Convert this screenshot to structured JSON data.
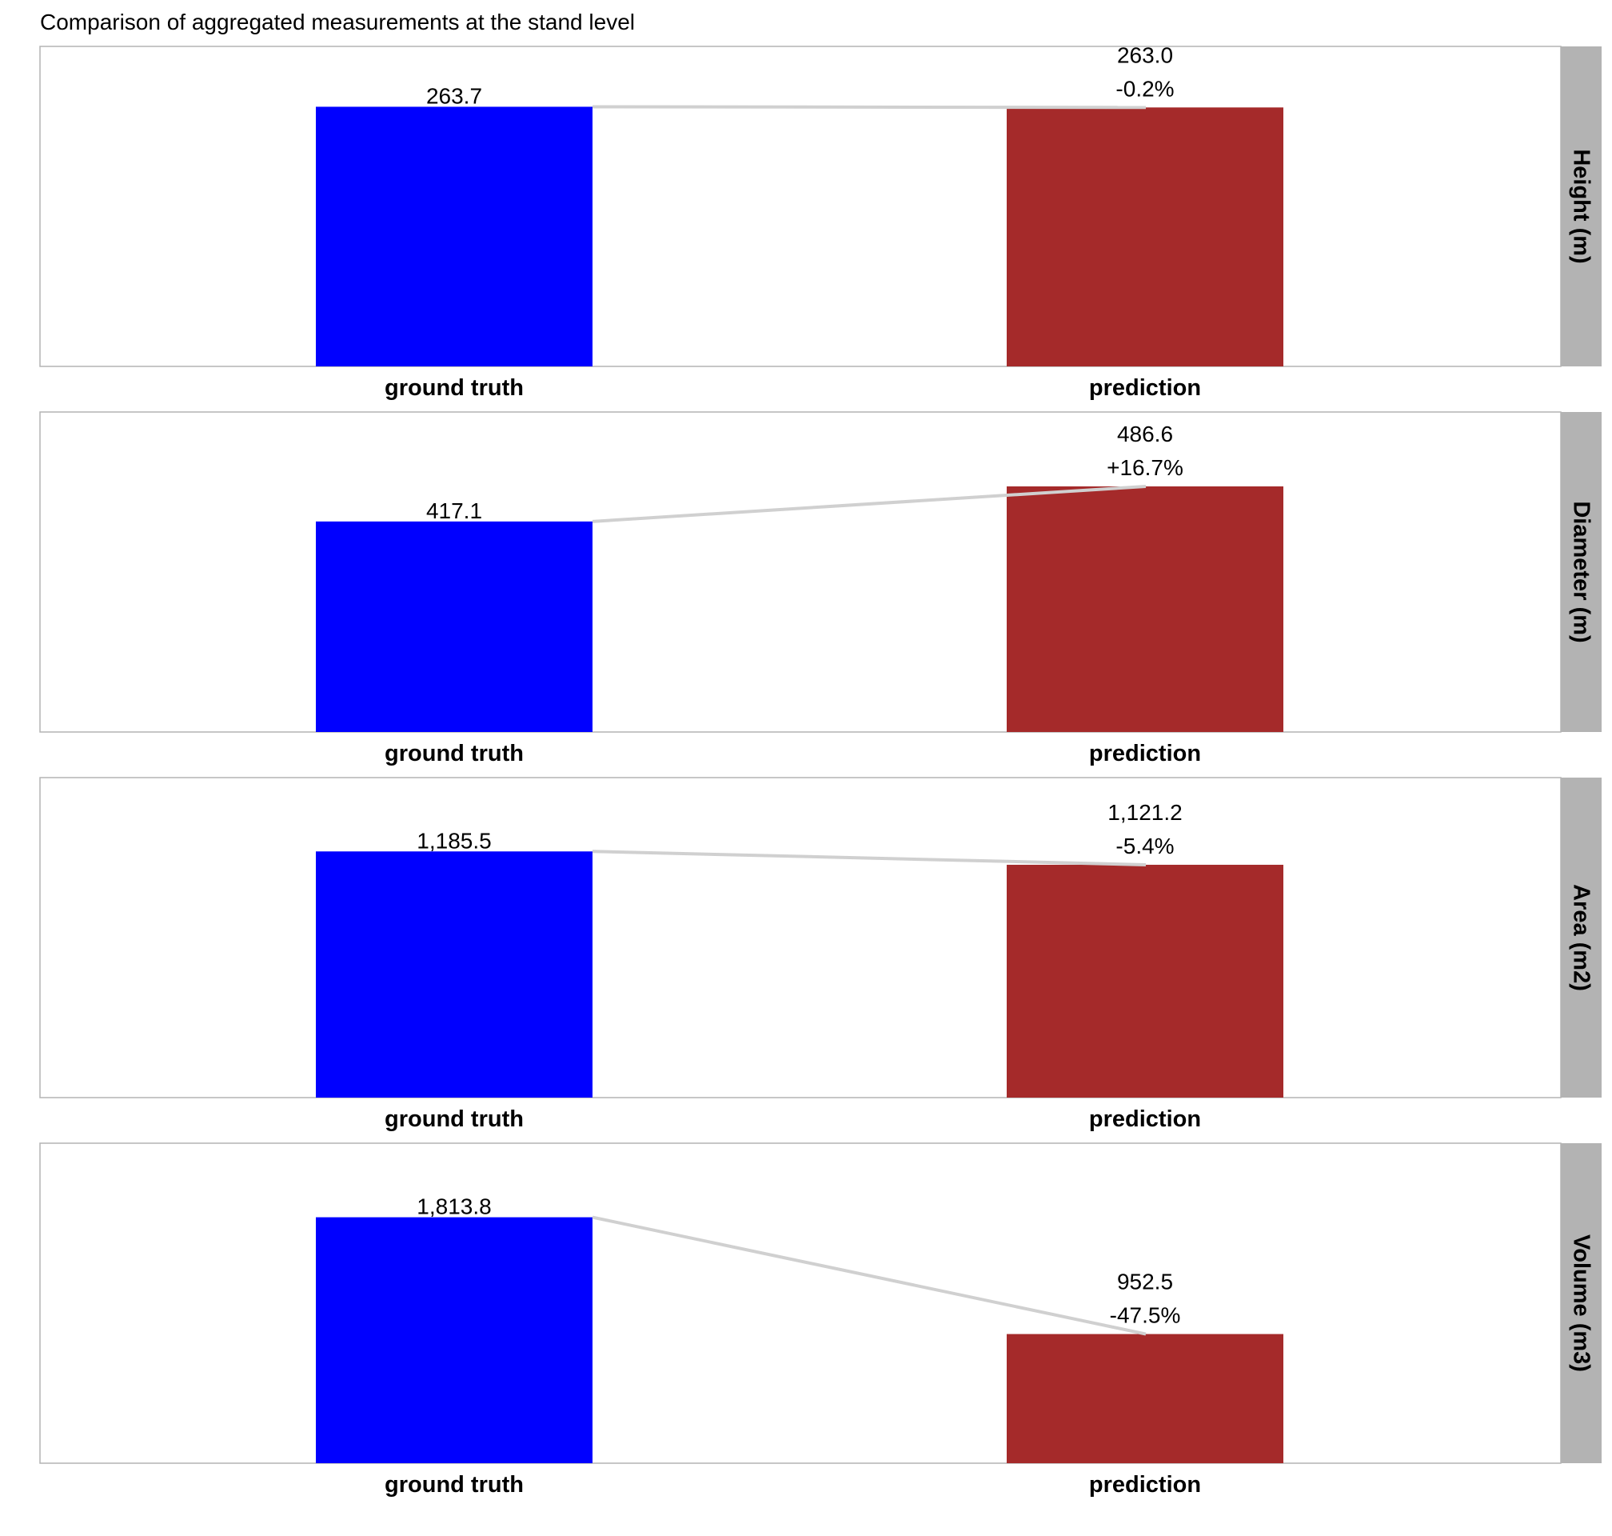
{
  "chart_data": {
    "type": "bar",
    "title": "Comparison of aggregated measurements at the stand level",
    "categories": [
      "ground truth",
      "prediction"
    ],
    "colors": {
      "ground truth": "#0000ff",
      "prediction": "#a52a2a",
      "connector": "#d0d0d0",
      "strip": "#b3b3b3",
      "panel_border": "#b3b3b3"
    },
    "panels": [
      {
        "label": "Height (m)",
        "values": [
          263.7,
          263.0
        ],
        "value_labels": [
          "263.7",
          "263.0"
        ],
        "change_label": "-0.2%",
        "ylim": [
          0,
          325
        ]
      },
      {
        "label": "Diameter (m)",
        "values": [
          417.1,
          486.6
        ],
        "value_labels": [
          "417.1",
          "486.6"
        ],
        "change_label": "+16.7%",
        "ylim": [
          0,
          634
        ]
      },
      {
        "label": "Area (m2)",
        "values": [
          1185.5,
          1121.2
        ],
        "value_labels": [
          "1,185.5",
          "1,121.2"
        ],
        "change_label": "-5.4%",
        "ylim": [
          0,
          1541
        ]
      },
      {
        "label": "Volume (m3)",
        "values": [
          1813.8,
          952.5
        ],
        "value_labels": [
          "1,813.8",
          "952.5"
        ],
        "change_label": "-47.5%",
        "ylim": [
          0,
          2360
        ]
      }
    ],
    "grid": false,
    "legend": "none",
    "facet_strip": "right"
  }
}
